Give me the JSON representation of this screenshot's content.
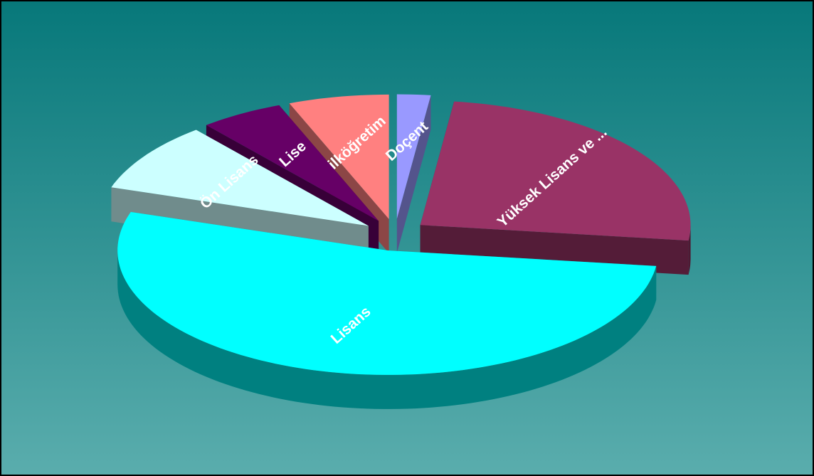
{
  "chart_data": {
    "type": "pie3d",
    "categories": [
      "Doçent",
      "Yüksek Lisans ve ...",
      "Lisans",
      "Ön Lisans",
      "Lise",
      "ilköğretim"
    ],
    "values": [
      2,
      25,
      53,
      9,
      5,
      6
    ],
    "colors": [
      "#9999ff",
      "#993366",
      "#00ffff",
      "#ccffff",
      "#660066",
      "#ff8080"
    ]
  }
}
